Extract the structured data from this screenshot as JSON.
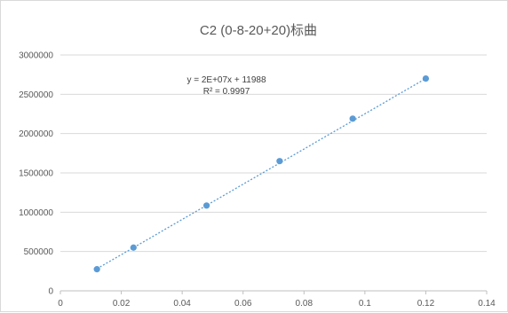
{
  "chart_data": {
    "type": "scatter",
    "title": "C2 (0-8-20+20)标曲",
    "xlabel": "",
    "ylabel": "",
    "xlim": [
      0,
      0.14
    ],
    "ylim": [
      0,
      3000000
    ],
    "x_ticks": [
      0,
      0.02,
      0.04,
      0.06,
      0.08,
      0.1,
      0.12,
      0.14
    ],
    "x_tick_labels": [
      "0",
      "0.02",
      "0.04",
      "0.06",
      "0.08",
      "0.1",
      "0.12",
      "0.14"
    ],
    "y_ticks": [
      0,
      500000,
      1000000,
      1500000,
      2000000,
      2500000,
      3000000
    ],
    "y_tick_labels": [
      "0",
      "500000",
      "1000000",
      "1500000",
      "2000000",
      "2500000",
      "3000000"
    ],
    "grid": "horizontal",
    "legend": "none",
    "marker_color": "#5b9bd5",
    "trendline_color": "#5b9bd5",
    "gridline_color": "#d9d9d9",
    "series": [
      {
        "x": [
          0.012,
          0.024,
          0.048,
          0.072,
          0.096,
          0.12
        ],
        "y": [
          275000,
          550000,
          1085000,
          1650000,
          2190000,
          2700000
        ]
      }
    ],
    "trendline": {
      "type": "linear",
      "slope": 22400000,
      "intercept": 11988,
      "equation": "y = 2E+07x + 11988",
      "r_squared": "R² = 0.9997"
    }
  }
}
